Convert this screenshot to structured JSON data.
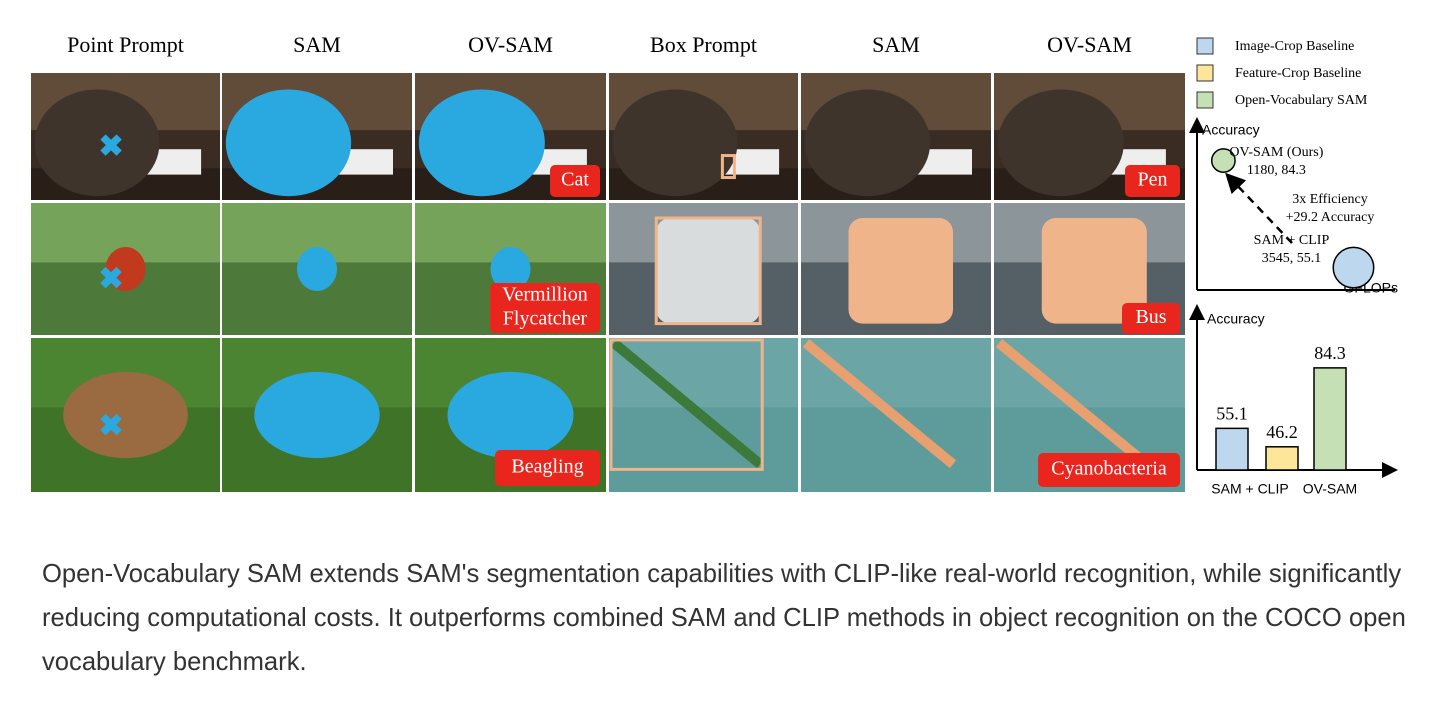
{
  "headers": [
    "Point Prompt",
    "SAM",
    "OV-SAM",
    "Box Prompt",
    "SAM",
    "OV-SAM"
  ],
  "labels": [
    [
      "Cat"
    ],
    [
      "Pen"
    ],
    [
      "Vermillion",
      "Flycatcher"
    ],
    [
      "Bus"
    ],
    [
      "Beagling"
    ],
    [
      "Cyanobacteria"
    ]
  ],
  "legend": [
    {
      "name": "Image-Crop Baseline",
      "color": "#bdd7ee"
    },
    {
      "name": "Feature-Crop Baseline",
      "color": "#fde699"
    },
    {
      "name": "Open-Vocabulary SAM",
      "color": "#c5e0b4"
    }
  ],
  "chart_data": [
    {
      "type": "scatter",
      "y_label": "Accuracy",
      "x_label": "GFLOPs",
      "xlim": [
        700,
        4300
      ],
      "ylim": [
        49,
        94
      ],
      "series": [
        {
          "name": "OV-SAM (Ours)",
          "color": "#c5e0b4",
          "x": [
            1180
          ],
          "values": [
            84.3
          ],
          "value_labels": [
            "1180, 84.3"
          ]
        },
        {
          "name": "SAM + CLIP",
          "color": "#bdd7ee",
          "x": [
            3545
          ],
          "values": [
            55.1
          ],
          "value_labels": [
            "3545, 55.1"
          ]
        }
      ],
      "annotations": [
        "3x Efficiency",
        "+29.2 Accuracy"
      ]
    },
    {
      "type": "bar",
      "y_label": "Accuracy",
      "categories": [
        "SAM + CLIP",
        null,
        "OV-SAM"
      ],
      "values": [
        55.1,
        46.2,
        84.3
      ],
      "colors": [
        "#bdd7ee",
        "#fde699",
        "#c5e0b4"
      ],
      "ylim": [
        35,
        105
      ]
    }
  ],
  "caption": "Open-Vocabulary SAM extends SAM's segmentation capabilities with CLIP-like real-world recognition, while significantly reducing computational costs. It outperforms combined SAM and CLIP methods in object recognition on the COCO open vocabulary benchmark."
}
